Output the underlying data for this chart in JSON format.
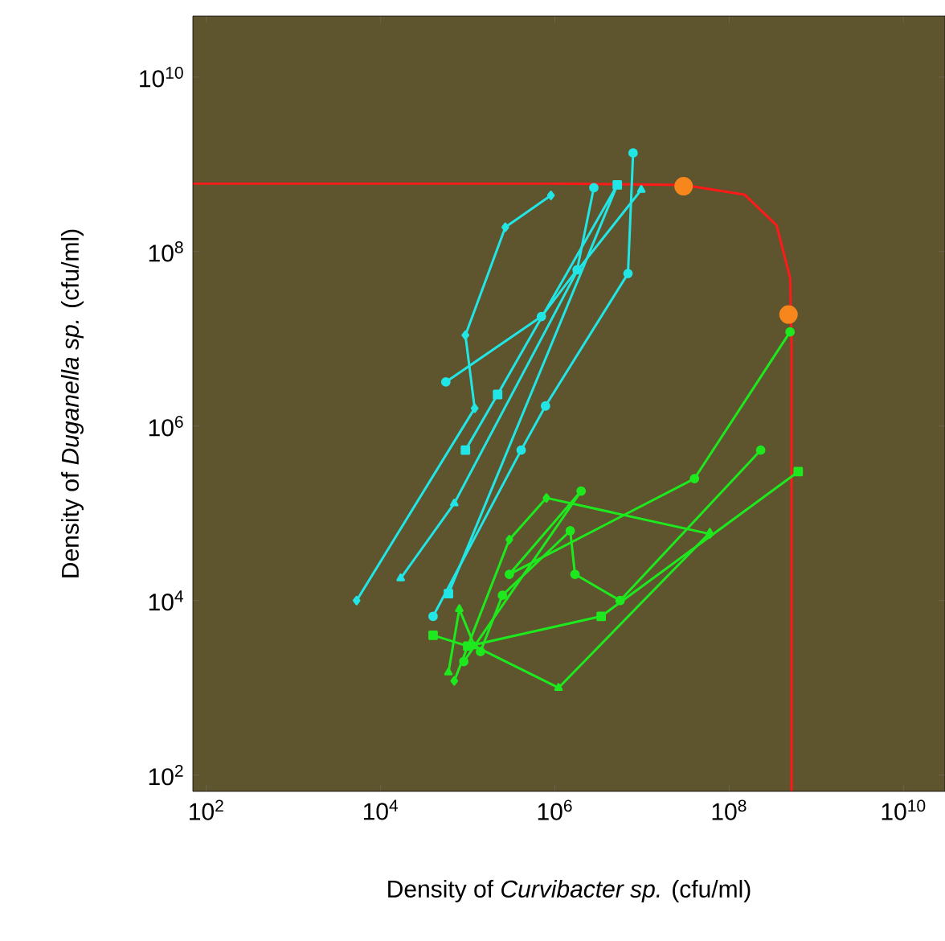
{
  "chart_data": {
    "type": "line",
    "xlabel": "Density of *Curvibacter sp.* (cfu/ml)",
    "ylabel": "Density of *Duganella sp.* (cfu/ml)",
    "log": "xy",
    "xlim": [
      70,
      30000000000.0
    ],
    "ylim": [
      65,
      50000000000.0
    ],
    "xticks": [
      {
        "value": 100,
        "label": "10$^{2}$"
      },
      {
        "value": 10000,
        "label": "10$^{4}$"
      },
      {
        "value": 1000000,
        "label": "10$^{6}$"
      },
      {
        "value": 100000000,
        "label": "10$^{8}$"
      },
      {
        "value": 10000000000,
        "label": "10$^{10}$"
      }
    ],
    "yticks": [
      {
        "value": 100,
        "label": "10$^{2}$"
      },
      {
        "value": 10000,
        "label": "10$^{4}$"
      },
      {
        "value": 1000000,
        "label": "10$^{6}$"
      },
      {
        "value": 100000000,
        "label": "10$^{8}$"
      },
      {
        "value": 10000000000,
        "label": "10$^{10}$"
      }
    ],
    "series": [
      {
        "marker": "none",
        "color": "#ff1a1a",
        "x": [
          70,
          1000000.0,
          30000000.0,
          150000000.0,
          350000000.0,
          500000000.0,
          520000000.0,
          520000000.0
        ],
        "values": [
          600000000.0,
          600000000.0,
          580000000.0,
          450000000.0,
          200000000.0,
          50000000.0,
          10000000.0,
          65
        ]
      },
      {
        "type": "line",
        "marker": "diamond",
        "color": "#22e5e5",
        "x": [
          900000.0,
          270000.0,
          94000.0,
          120000.0,
          5300.0
        ],
        "values": [
          440000000.0,
          190000000.0,
          11000000.0,
          1600000.0,
          10000.0
        ]
      },
      {
        "type": "line",
        "marker": "circle",
        "color": "#22e5e5",
        "x": [
          56000.0,
          700000.0,
          1800000.0,
          2800000.0
        ],
        "values": [
          3200000.0,
          18000000.0,
          62000000.0,
          540000000.0
        ]
      },
      {
        "type": "line",
        "marker": "square",
        "color": "#22e5e5",
        "x": [
          94000.0,
          220000.0,
          5200000.0,
          60000.0
        ],
        "values": [
          530000.0,
          2300000.0,
          580000000.0,
          12000.0
        ]
      },
      {
        "type": "line",
        "marker": "triangle",
        "color": "#22e5e5",
        "x": [
          17000.0,
          70000.0,
          1800000.0,
          9800000.0
        ],
        "values": [
          18000.0,
          130000.0,
          60000000.0,
          510000000.0
        ]
      },
      {
        "type": "line",
        "marker": "circle",
        "color": "#22e5e5",
        "x": [
          40000.0,
          410000.0,
          780000.0,
          6900000.0,
          7900000.0
        ],
        "values": [
          6600.0,
          530000.0,
          1700000.0,
          56000000.0,
          1350000000.0
        ]
      },
      {
        "type": "line",
        "marker": "circle",
        "color": "#1ee81e",
        "x": [
          140000.0,
          250000.0,
          1500000.0,
          1700000.0,
          5600000.0,
          230000000.0
        ],
        "values": [
          2600.0,
          11500.0,
          63000.0,
          20000.0,
          10000.0,
          530000.0
        ]
      },
      {
        "type": "line",
        "marker": "square",
        "color": "#1ee81e",
        "x": [
          40000.0,
          100000.0,
          3400000.0,
          620000000.0
        ],
        "values": [
          4000.0,
          3000.0,
          6600.0,
          300000.0
        ]
      },
      {
        "type": "line",
        "marker": "triangle",
        "color": "#1ee81e",
        "x": [
          60000.0,
          80000.0,
          120000.0,
          1100000.0,
          60000000.0
        ],
        "values": [
          1500.0,
          8000.0,
          3000.0,
          1000.0,
          60000.0
        ]
      },
      {
        "type": "line",
        "marker": "diamond",
        "color": "#1ee81e",
        "x": [
          70000.0,
          300000.0,
          800000.0,
          60000000.0
        ],
        "values": [
          1200.0,
          50000.0,
          150000.0,
          58000.0
        ]
      },
      {
        "type": "line",
        "marker": "circle",
        "color": "#1ee81e",
        "x": [
          90000.0,
          2000000.0,
          300000.0,
          40000000.0,
          500000000.0
        ],
        "values": [
          2000.0,
          180000.0,
          20000.0,
          250000.0,
          12000000.0
        ]
      },
      {
        "type": "scatter",
        "marker": "circle",
        "color": "#f7861c",
        "x": [
          30000000.0,
          480000000.0
        ],
        "values": [
          560000000.0,
          19000000.0
        ]
      }
    ]
  }
}
